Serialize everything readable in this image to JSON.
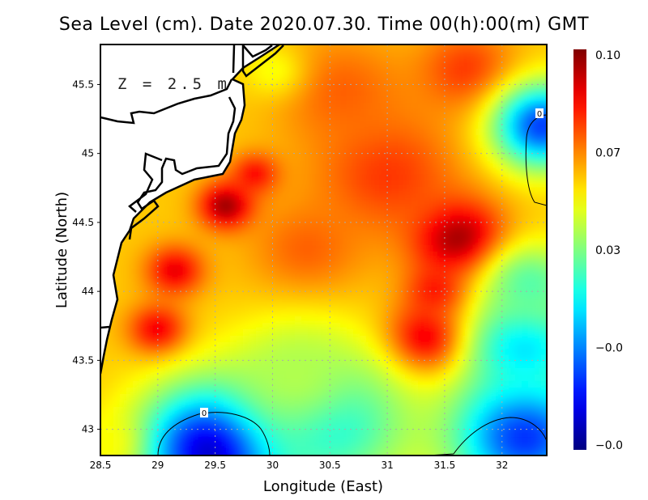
{
  "chart_data": {
    "type": "heatmap",
    "title": "Sea Level (cm). Date 2020.07.30. Time 00(h):00(m) GMT",
    "xlabel": "Longitude (East)",
    "ylabel": "Latitude (North)",
    "annotation": "Z = 2.5 m",
    "xlim": [
      28.5,
      32.39
    ],
    "ylim": [
      42.81,
      45.79
    ],
    "xticks": [
      28.5,
      29,
      29.5,
      30,
      30.5,
      31,
      31.5,
      32
    ],
    "xtick_labels": [
      "28.5",
      "29",
      "29.5",
      "30",
      "30.5",
      "31",
      "31.5",
      "32"
    ],
    "yticks": [
      43,
      43.5,
      44,
      44.5,
      45,
      45.5
    ],
    "ytick_labels": [
      "43",
      "43.5",
      "44",
      "44.5",
      "45",
      "45.5"
    ],
    "grid": true,
    "colorbar": {
      "range": [
        -0.035,
        0.102
      ],
      "ticks": [
        0.1,
        0.0667,
        0.0333,
        0.0,
        -0.0333
      ],
      "tick_labels": [
        "0.10",
        "0.07",
        "0.03",
        "−0.0",
        "−0.0"
      ],
      "placement": "right"
    },
    "field_base": 0.058,
    "field_features": [
      {
        "lon": 31.62,
        "lat": 44.38,
        "value": 0.102,
        "r": 0.28
      },
      {
        "lon": 31.35,
        "lat": 43.65,
        "value": 0.095,
        "r": 0.25
      },
      {
        "lon": 31.45,
        "lat": 44.0,
        "value": 0.085,
        "r": 0.2
      },
      {
        "lon": 29.6,
        "lat": 44.62,
        "value": 0.1,
        "r": 0.17
      },
      {
        "lon": 29.85,
        "lat": 44.85,
        "value": 0.085,
        "r": 0.15
      },
      {
        "lon": 29.15,
        "lat": 44.15,
        "value": 0.088,
        "r": 0.18
      },
      {
        "lon": 29.0,
        "lat": 43.72,
        "value": 0.088,
        "r": 0.18
      },
      {
        "lon": 31.0,
        "lat": 44.85,
        "value": 0.078,
        "r": 0.45
      },
      {
        "lon": 30.6,
        "lat": 45.45,
        "value": 0.072,
        "r": 0.4
      },
      {
        "lon": 31.7,
        "lat": 45.6,
        "value": 0.078,
        "r": 0.3
      },
      {
        "lon": 30.3,
        "lat": 44.3,
        "value": 0.072,
        "r": 0.35
      },
      {
        "lon": 29.5,
        "lat": 42.85,
        "value": -0.03,
        "r": 0.45
      },
      {
        "lon": 30.5,
        "lat": 43.05,
        "value": 0.018,
        "r": 0.5
      },
      {
        "lon": 30.2,
        "lat": 43.4,
        "value": 0.04,
        "r": 0.4
      },
      {
        "lon": 32.2,
        "lat": 42.95,
        "value": -0.012,
        "r": 0.45
      },
      {
        "lon": 32.2,
        "lat": 43.6,
        "value": 0.012,
        "r": 0.35
      },
      {
        "lon": 32.25,
        "lat": 44.05,
        "value": 0.028,
        "r": 0.3
      },
      {
        "lon": 32.35,
        "lat": 45.2,
        "value": -0.01,
        "r": 0.3
      },
      {
        "lon": 28.55,
        "lat": 42.9,
        "value": 0.05,
        "r": 0.2
      },
      {
        "lon": 30.0,
        "lat": 45.6,
        "value": 0.05,
        "r": 0.2
      }
    ],
    "contours": [
      {
        "level": 0,
        "label": "0"
      },
      {
        "level": 0,
        "label": "0"
      }
    ]
  }
}
